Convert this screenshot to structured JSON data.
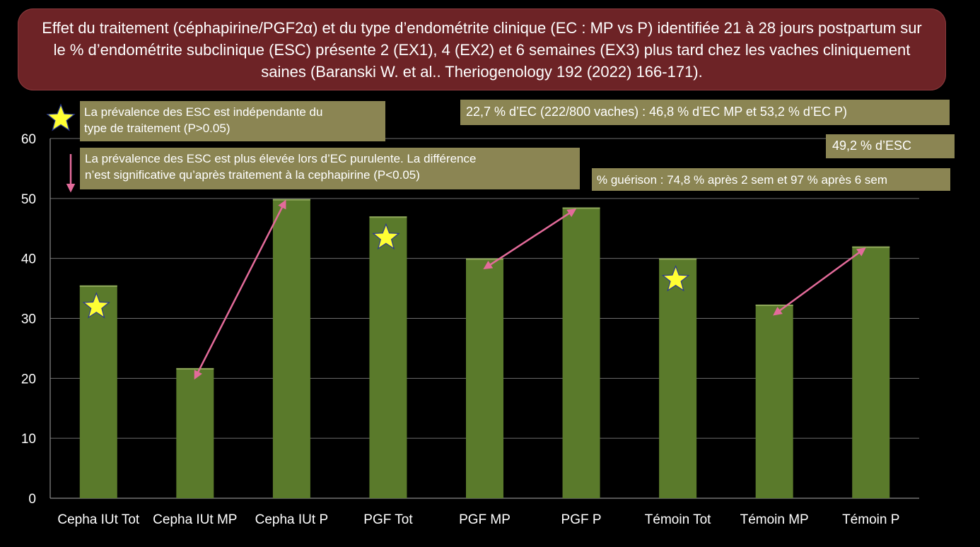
{
  "title": "Effet du traitement (céphapirine/PGF2α) et du type d’endométrite clinique (EC : MP vs P) identifiée 21 à 28 jours postpartum sur le % d’endométrite subclinique  (ESC) présente 2 (EX1), 4 (EX2) et 6 semaines (EX3) plus tard chez les vaches cliniquement saines (Baranski W. et al.. Theriogenology 192 (2022) 166-171).",
  "notes": {
    "independent": [
      "La prévalence des ESC est indépendante du",
      "type de traitement (P>0.05)"
    ],
    "purulent": [
      "La prévalence des ESC est plus élevée lors d’EC purulente. La différence",
      "n’est significative qu’après traitement à la cephapirine  (P<0.05)"
    ],
    "ec_summary": "22,7 % d’EC (222/800 vaches) : 46,8 % d’EC MP et 53,2 % d’EC P)",
    "esc_summary": "49,2 % d’ESC",
    "healing": "% guérison : 74,8 % après 2 sem et 97 % après 6 sem"
  },
  "colors": {
    "bar": "#5a7a2b",
    "bar_top": "#8fa85a",
    "arrow": "#e36b9a",
    "star": "#ffff33",
    "note_bg": "#8b8553",
    "title_bg": "#6d2326"
  },
  "chart_data": {
    "type": "bar",
    "categories": [
      "Cepha IUt Tot",
      "Cepha IUt MP",
      "Cepha IUt P",
      "PGF Tot",
      "PGF MP",
      "PGF P",
      "Témoin Tot",
      "Témoin MP",
      "Témoin P"
    ],
    "values": [
      35.5,
      21.7,
      49.9,
      47,
      40,
      48.5,
      40,
      32.3,
      42
    ],
    "ylim": [
      0,
      60
    ],
    "yticks": [
      0,
      10,
      20,
      30,
      40,
      50,
      60
    ],
    "grid": true,
    "stars_on": [
      "Cepha IUt Tot",
      "PGF Tot",
      "Témoin Tot"
    ],
    "arrows": [
      {
        "from": "Cepha IUt MP",
        "to": "Cepha IUt P"
      },
      {
        "from": "PGF MP",
        "to": "PGF P"
      },
      {
        "from": "Témoin MP",
        "to": "Témoin P"
      }
    ]
  }
}
